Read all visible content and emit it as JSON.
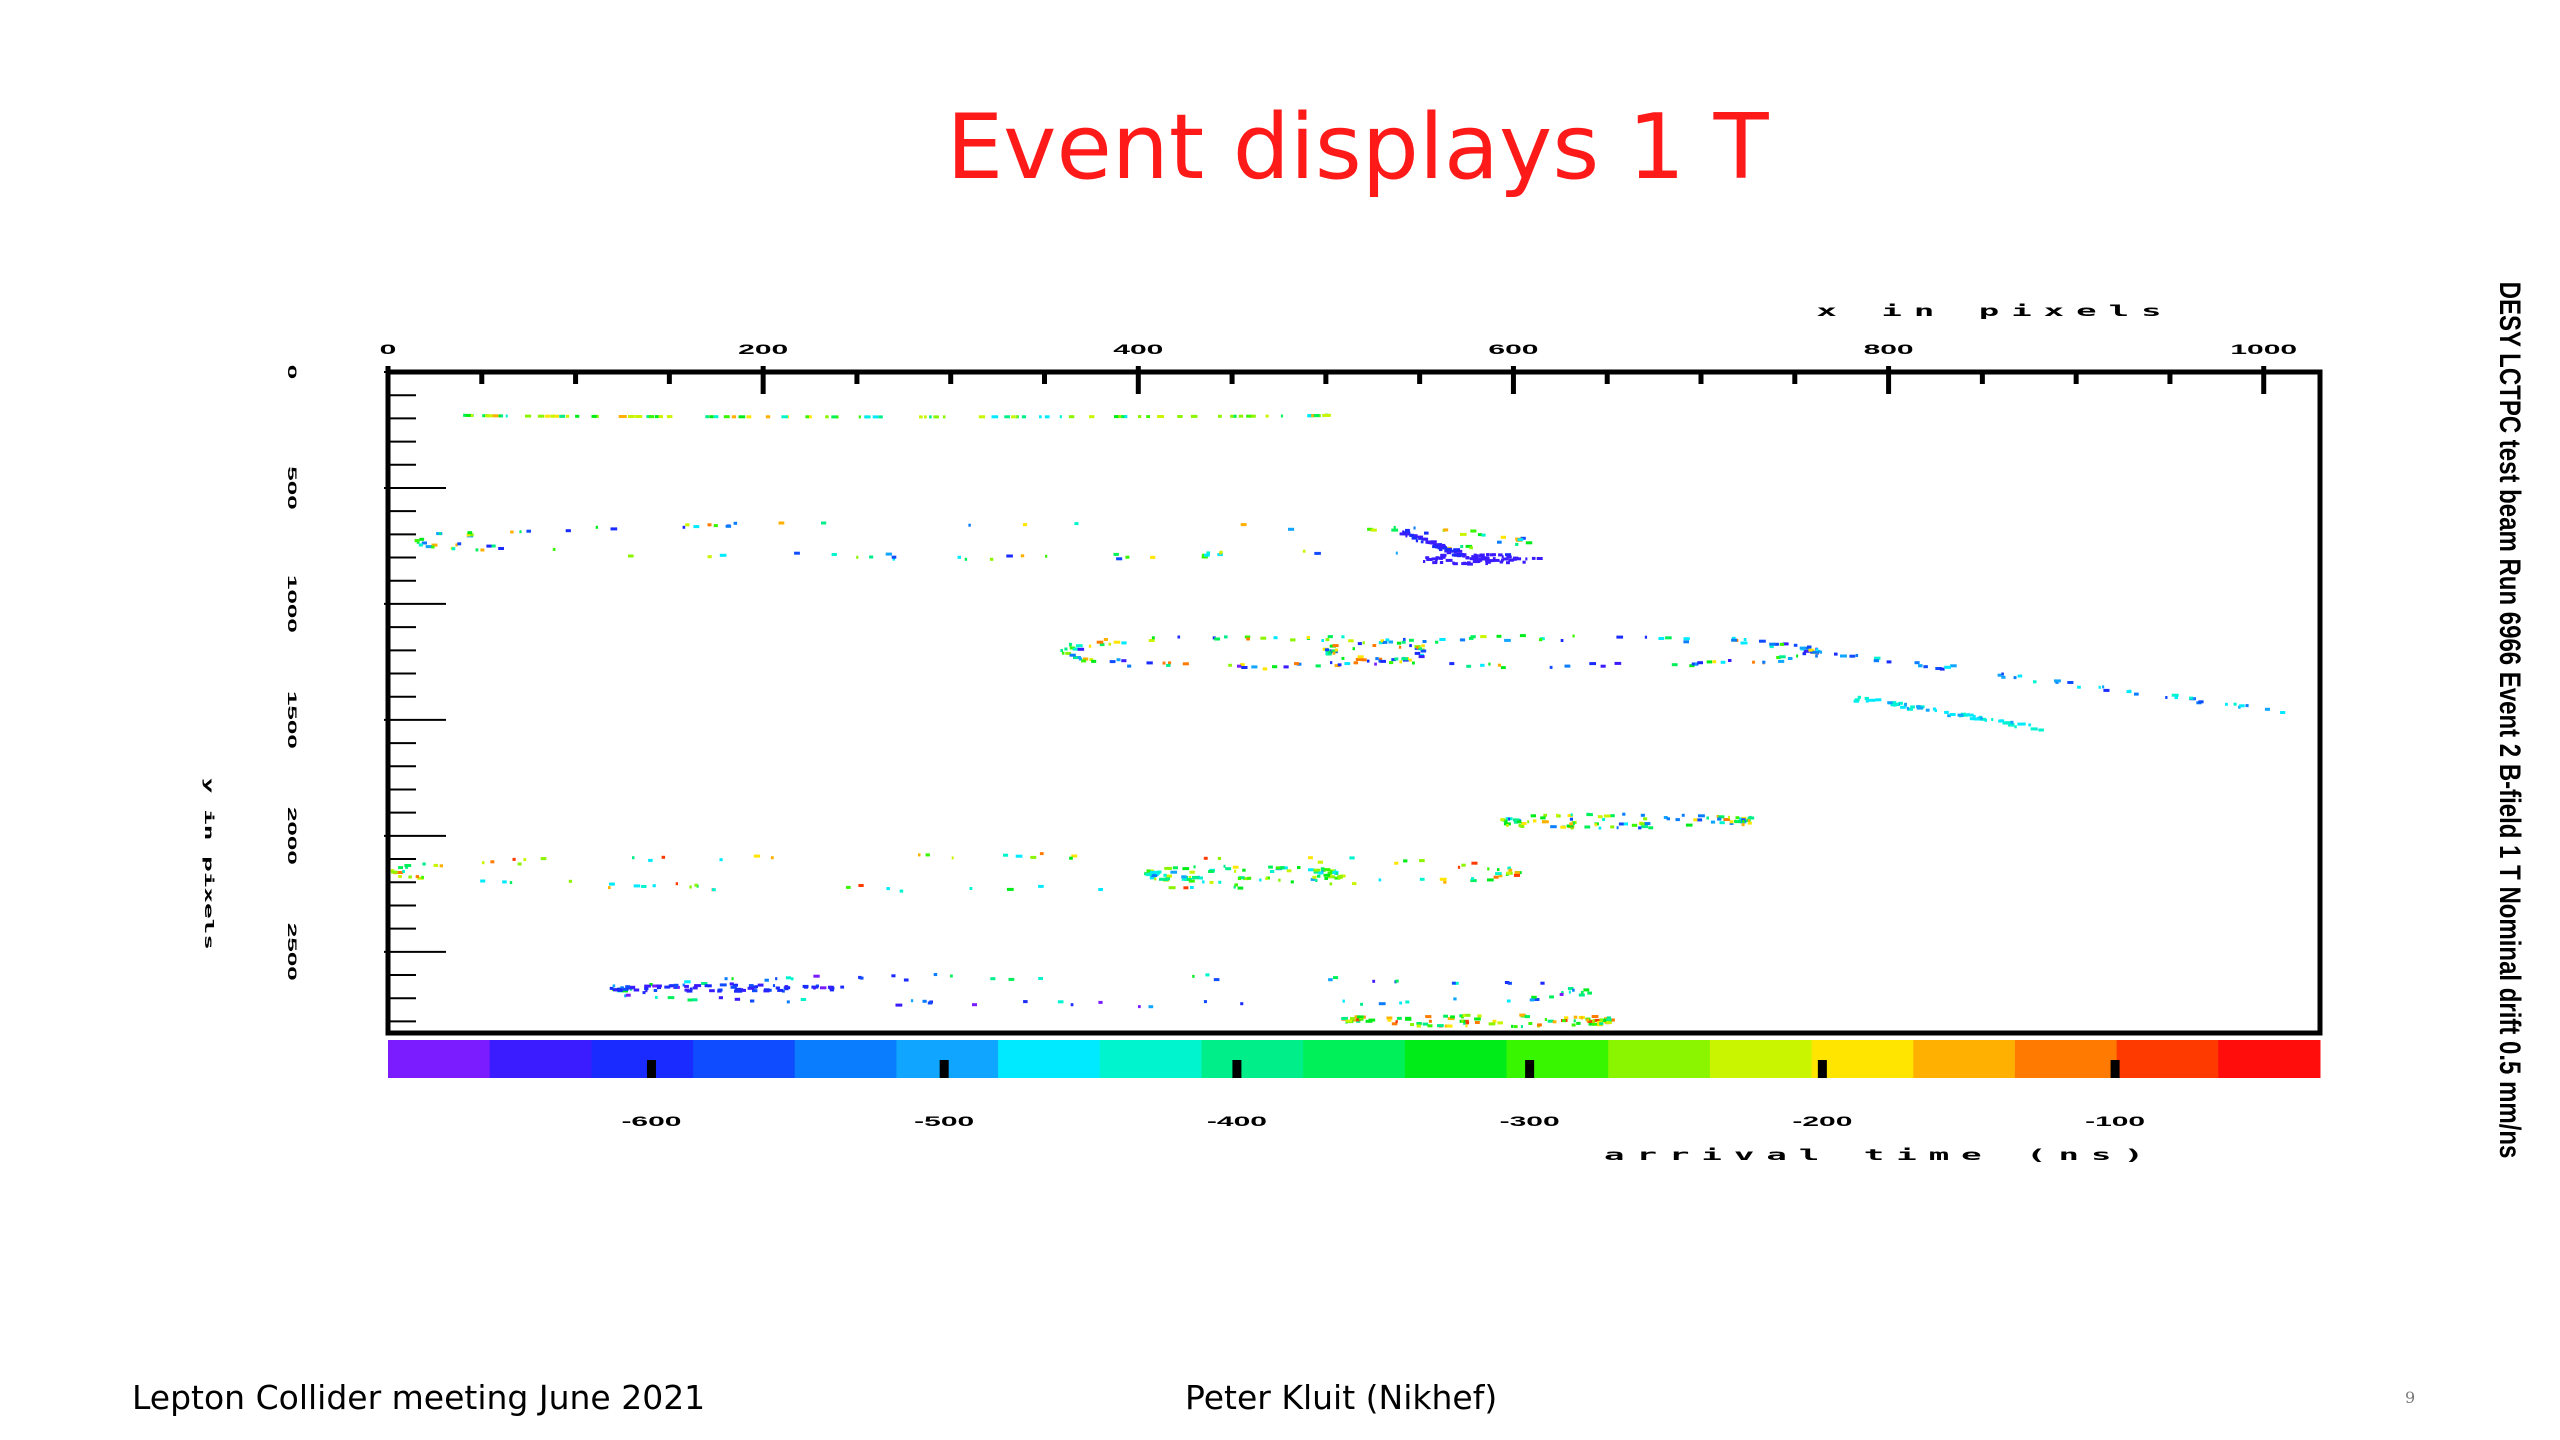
{
  "slide": {
    "title": "Event displays 1 T",
    "footer_left": "Lepton Collider meeting June 2021",
    "footer_center": "Peter Kluit (Nikhef)",
    "page_number": "9"
  },
  "chart_data": {
    "type": "scatter",
    "title": "DESY LCTPC test beam  Run 6966 Event 2  B-field 1 T  Nominal drift  0.5 mm/ns",
    "xlabel": "x in pixels",
    "ylabel": "y in pixels",
    "colorbar_label": "arrival time (ns)",
    "x_ticks": [
      "0",
      "200",
      "400",
      "600",
      "800",
      "1000"
    ],
    "y_ticks": [
      "0",
      "500",
      "1000",
      "1500",
      "2000",
      "2500"
    ],
    "colorbar_ticks": [
      "-600",
      "-500",
      "-400",
      "-300",
      "-200",
      "-100"
    ],
    "xlim": [
      0,
      1030
    ],
    "ylim": [
      0,
      2850
    ],
    "clim": [
      -690,
      -30
    ],
    "colors": {
      "palette": [
        "#7a1cff",
        "#3b1bff",
        "#1a2bff",
        "#0f4bff",
        "#0a7dff",
        "#10a6ff",
        "#00eaff",
        "#00f5cf",
        "#00ee8a",
        "#00f05a",
        "#00ec19",
        "#38f500",
        "#8bf500",
        "#c9f500",
        "#ffe500",
        "#ffb000",
        "#ff7a00",
        "#ff3a00",
        "#ff0d0d"
      ],
      "title": "#ff1a1a"
    },
    "clusters": [
      {
        "name": "arc-top",
        "kind": "arc",
        "cx": 270,
        "cy": 180,
        "rx": 230,
        "ry": 7,
        "a0": 0,
        "a1": 180,
        "t": [
          -480,
          -140
        ]
      },
      {
        "name": "ring-1",
        "kind": "ellipse",
        "cx": 310,
        "cy": 720,
        "rx": 295,
        "ry": 70,
        "t": [
          -620,
          -120
        ]
      },
      {
        "name": "blob-1",
        "kind": "blob",
        "cx": 580,
        "cy": 800,
        "rx": 35,
        "ry": 22,
        "t": [
          -650,
          -620
        ]
      },
      {
        "name": "blob-1-tail",
        "kind": "line",
        "x0": 540,
        "y0": 680,
        "x1": 570,
        "y1": 780,
        "t": [
          -640,
          -600
        ]
      },
      {
        "name": "ring-2",
        "kind": "ellipse",
        "cx": 455,
        "cy": 1200,
        "rx": 95,
        "ry": 65,
        "t": [
          -660,
          -100
        ]
      },
      {
        "name": "ring-3",
        "kind": "ellipse",
        "cx": 630,
        "cy": 1200,
        "rx": 130,
        "ry": 60,
        "t": [
          -660,
          -100
        ]
      },
      {
        "name": "track-1",
        "kind": "line",
        "x0": 700,
        "y0": 1130,
        "x1": 1010,
        "y1": 1460,
        "t": [
          -600,
          -420
        ]
      },
      {
        "name": "track-2",
        "kind": "line",
        "x0": 780,
        "y0": 1400,
        "x1": 880,
        "y1": 1530,
        "t": [
          -500,
          -420
        ]
      },
      {
        "name": "ring-4",
        "kind": "ellipse",
        "cx": 660,
        "cy": 1930,
        "rx": 65,
        "ry": 20,
        "t": [
          -560,
          -120
        ]
      },
      {
        "name": "ring-5",
        "kind": "ellipse",
        "cx": 300,
        "cy": 2150,
        "rx": 300,
        "ry": 70,
        "t": [
          -480,
          -80
        ]
      },
      {
        "name": "ring-6",
        "kind": "ellipse",
        "cx": 455,
        "cy": 2160,
        "rx": 50,
        "ry": 25,
        "t": [
          -520,
          -200
        ]
      },
      {
        "name": "bottom-band",
        "kind": "ellipse",
        "cx": 380,
        "cy": 2660,
        "rx": 260,
        "ry": 60,
        "t": [
          -670,
          -300
        ]
      },
      {
        "name": "bottom-blob",
        "kind": "blob",
        "cx": 180,
        "cy": 2650,
        "rx": 70,
        "ry": 15,
        "t": [
          -660,
          -560
        ]
      },
      {
        "name": "bottom-right",
        "kind": "ellipse",
        "cx": 580,
        "cy": 2790,
        "rx": 70,
        "ry": 15,
        "t": [
          -400,
          -80
        ]
      }
    ]
  }
}
